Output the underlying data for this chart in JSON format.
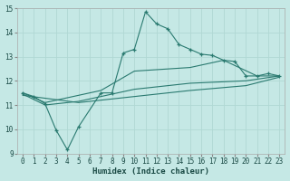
{
  "xlabel": "Humidex (Indice chaleur)",
  "xlim": [
    -0.5,
    23.5
  ],
  "ylim": [
    9,
    15
  ],
  "xticks": [
    0,
    1,
    2,
    3,
    4,
    5,
    6,
    7,
    8,
    9,
    10,
    11,
    12,
    13,
    14,
    15,
    16,
    17,
    18,
    19,
    20,
    21,
    22,
    23
  ],
  "yticks": [
    9,
    10,
    11,
    12,
    13,
    14,
    15
  ],
  "background_color": "#c5e8e5",
  "grid_color": "#b0d8d4",
  "line_color": "#2a7a70",
  "line1_x": [
    0,
    1,
    2,
    3,
    4,
    5,
    7,
    8,
    9,
    10,
    11,
    12,
    13,
    14,
    15,
    16,
    17,
    18,
    19,
    20,
    21,
    22,
    23
  ],
  "line1_y": [
    11.5,
    11.35,
    11.05,
    9.95,
    9.15,
    10.1,
    11.5,
    11.5,
    13.15,
    13.3,
    14.85,
    14.35,
    14.15,
    13.5,
    13.3,
    13.1,
    13.05,
    12.85,
    12.8,
    12.2,
    12.2,
    12.3,
    12.2
  ],
  "line2_x": [
    0,
    2,
    7,
    10,
    15,
    18,
    21,
    23
  ],
  "line2_y": [
    11.5,
    11.1,
    11.6,
    12.4,
    12.55,
    12.85,
    12.2,
    12.2
  ],
  "line3_x": [
    0,
    2,
    5,
    10,
    15,
    20,
    23
  ],
  "line3_y": [
    11.45,
    11.0,
    11.15,
    11.65,
    11.9,
    12.0,
    12.2
  ],
  "line4_x": [
    0,
    5,
    10,
    15,
    20,
    23
  ],
  "line4_y": [
    11.4,
    11.1,
    11.35,
    11.6,
    11.8,
    12.15
  ]
}
